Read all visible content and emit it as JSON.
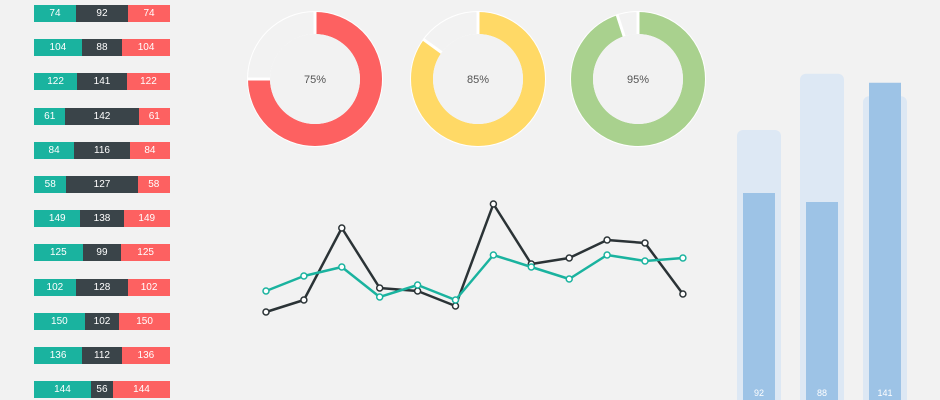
{
  "colors": {
    "teal": "#1ab39f",
    "dark": "#3a4449",
    "red": "#fd6161",
    "yellow": "#ffd966",
    "green": "#a9d18e",
    "blue": "#9dc3e6",
    "background": "#f2f2f2"
  },
  "chart_data": [
    {
      "type": "bar",
      "subtype": "stacked-horizontal",
      "series": [
        {
          "values": [
            74,
            104,
            122,
            61,
            84,
            58,
            149,
            125,
            102,
            150,
            136,
            144
          ]
        },
        {
          "values": [
            92,
            88,
            141,
            142,
            116,
            127,
            138,
            99,
            128,
            102,
            112,
            56
          ]
        },
        {
          "values": [
            74,
            104,
            122,
            61,
            84,
            58,
            149,
            125,
            102,
            150,
            136,
            144
          ]
        }
      ]
    },
    {
      "type": "pie",
      "subtype": "donut",
      "charts": [
        {
          "value": 75,
          "label": "75%",
          "color": "#fd6161"
        },
        {
          "value": 85,
          "label": "85%",
          "color": "#ffd966"
        },
        {
          "value": 95,
          "label": "95%",
          "color": "#a9d18e"
        }
      ]
    },
    {
      "type": "line",
      "ylim": [
        0,
        25
      ],
      "series": [
        {
          "color": "#2b3336",
          "values": [
            3,
            5,
            17,
            7,
            6.5,
            4,
            21,
            11,
            12,
            15,
            14.5,
            6
          ]
        },
        {
          "color": "#1ab39f",
          "values": [
            6.5,
            9,
            10.5,
            5.5,
            7.5,
            5,
            12.5,
            10.5,
            8.5,
            12.5,
            11.5,
            12
          ]
        }
      ]
    },
    {
      "type": "bar",
      "subtype": "overlay-column",
      "ylim": [
        0,
        160
      ],
      "values": [
        92,
        88,
        141
      ],
      "labels": [
        "92",
        "88",
        "141"
      ],
      "background_values": [
        120,
        145,
        135
      ]
    }
  ]
}
